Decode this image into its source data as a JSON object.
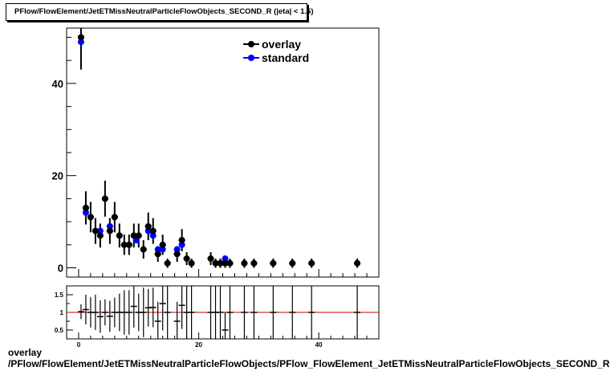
{
  "title": "PFlow/FlowElement/JetETMissNeutralParticleFlowObjects_SECOND_R (|eta| < 1.5)",
  "caption_line1": "overlay",
  "caption_line2": "/PFlow/FlowElement/JetETMissNeutralParticleFlowObjects/PFlow_FlowElement_JetETMissNeutralParticleFlowObjects_SECOND_R",
  "colors": {
    "overlay": "#000000",
    "standard": "#0000ff",
    "ratio_line": "#cc0000"
  },
  "chart_data": [
    {
      "type": "scatter",
      "panel": "main",
      "xlim": [
        -2,
        50
      ],
      "ylim": [
        -2,
        52
      ],
      "yticks": [
        0,
        20,
        40
      ],
      "xticks": [
        0,
        20,
        40
      ],
      "legend": {
        "placement": "top-right",
        "entries": [
          "overlay",
          "standard"
        ]
      },
      "series": [
        {
          "name": "overlay",
          "points": [
            {
              "x": 0.4,
              "y": 50,
              "err": 7
            },
            {
              "x": 1.2,
              "y": 13,
              "err": 3.6
            },
            {
              "x": 2.0,
              "y": 11,
              "err": 3.3
            },
            {
              "x": 2.8,
              "y": 8,
              "err": 2.8
            },
            {
              "x": 3.6,
              "y": 7,
              "err": 2.6
            },
            {
              "x": 4.4,
              "y": 15,
              "err": 3.9
            },
            {
              "x": 5.2,
              "y": 8,
              "err": 2.8
            },
            {
              "x": 6.0,
              "y": 11,
              "err": 3.3
            },
            {
              "x": 6.8,
              "y": 7,
              "err": 2.6
            },
            {
              "x": 7.6,
              "y": 5,
              "err": 2.2
            },
            {
              "x": 8.4,
              "y": 5,
              "err": 2.2
            },
            {
              "x": 9.2,
              "y": 7,
              "err": 2.6
            },
            {
              "x": 10.0,
              "y": 7,
              "err": 2.6
            },
            {
              "x": 10.8,
              "y": 4,
              "err": 2
            },
            {
              "x": 11.6,
              "y": 9,
              "err": 3
            },
            {
              "x": 12.4,
              "y": 8,
              "err": 2.8
            },
            {
              "x": 13.2,
              "y": 3,
              "err": 1.7
            },
            {
              "x": 14.0,
              "y": 5,
              "err": 2.2
            },
            {
              "x": 14.8,
              "y": 1,
              "err": 1
            },
            {
              "x": 16.4,
              "y": 3,
              "err": 1.7
            },
            {
              "x": 17.2,
              "y": 6,
              "err": 2.4
            },
            {
              "x": 18.0,
              "y": 2,
              "err": 1.4
            },
            {
              "x": 18.8,
              "y": 1,
              "err": 1
            },
            {
              "x": 22.0,
              "y": 2,
              "err": 1.4
            },
            {
              "x": 22.8,
              "y": 1,
              "err": 1
            },
            {
              "x": 23.6,
              "y": 1,
              "err": 1
            },
            {
              "x": 24.4,
              "y": 1,
              "err": 1
            },
            {
              "x": 25.2,
              "y": 1,
              "err": 1
            },
            {
              "x": 27.6,
              "y": 1,
              "err": 1
            },
            {
              "x": 29.2,
              "y": 1,
              "err": 1
            },
            {
              "x": 32.4,
              "y": 1,
              "err": 1
            },
            {
              "x": 35.6,
              "y": 1,
              "err": 1
            },
            {
              "x": 38.8,
              "y": 1,
              "err": 1
            },
            {
              "x": 46.4,
              "y": 1,
              "err": 1
            }
          ]
        },
        {
          "name": "standard",
          "points": [
            {
              "x": 0.4,
              "y": 49
            },
            {
              "x": 1.2,
              "y": 12
            },
            {
              "x": 3.6,
              "y": 8
            },
            {
              "x": 5.2,
              "y": 9
            },
            {
              "x": 9.6,
              "y": 6
            },
            {
              "x": 11.6,
              "y": 8
            },
            {
              "x": 12.4,
              "y": 7
            },
            {
              "x": 13.2,
              "y": 4
            },
            {
              "x": 14.0,
              "y": 4
            },
            {
              "x": 16.4,
              "y": 4
            },
            {
              "x": 17.2,
              "y": 5
            },
            {
              "x": 24.4,
              "y": 2
            }
          ]
        }
      ]
    },
    {
      "type": "scatter",
      "panel": "ratio",
      "xlim": [
        -2,
        50
      ],
      "ylim": [
        0.25,
        1.75
      ],
      "yticks": [
        0.5,
        1,
        1.5
      ],
      "xticks": [
        0,
        20,
        40
      ],
      "reference_line": 1,
      "points": [
        {
          "x": 0.4,
          "y": 1.02,
          "err": 0.21
        },
        {
          "x": 1.2,
          "y": 1.08,
          "err": 0.42
        },
        {
          "x": 2.0,
          "y": 1.0,
          "err": 0.43
        },
        {
          "x": 2.8,
          "y": 1.0,
          "err": 0.5
        },
        {
          "x": 3.6,
          "y": 0.88,
          "err": 0.46
        },
        {
          "x": 4.4,
          "y": 1.0,
          "err": 0.37
        },
        {
          "x": 5.2,
          "y": 0.89,
          "err": 0.44
        },
        {
          "x": 6.0,
          "y": 1.0,
          "err": 0.42
        },
        {
          "x": 6.8,
          "y": 1.0,
          "err": 0.53
        },
        {
          "x": 7.6,
          "y": 1.0,
          "err": 0.63
        },
        {
          "x": 8.4,
          "y": 1.0,
          "err": 0.63
        },
        {
          "x": 9.2,
          "y": 1.17,
          "err": 0.6
        },
        {
          "x": 10.0,
          "y": 1.0,
          "err": 0.53
        },
        {
          "x": 10.8,
          "y": 1.0,
          "err": 0.7
        },
        {
          "x": 11.6,
          "y": 1.13,
          "err": 0.53
        },
        {
          "x": 12.4,
          "y": 1.14,
          "err": 0.56
        },
        {
          "x": 13.2,
          "y": 0.75,
          "err": 0.55
        },
        {
          "x": 14.0,
          "y": 1.25,
          "err": 0.76
        },
        {
          "x": 14.8,
          "y": 1.0,
          "err": 1.0
        },
        {
          "x": 16.4,
          "y": 0.75,
          "err": 0.55
        },
        {
          "x": 17.2,
          "y": 1.2,
          "err": 0.67
        },
        {
          "x": 18.0,
          "y": 1.0,
          "err": 1.0
        },
        {
          "x": 18.8,
          "y": 1.0,
          "err": 1.0
        },
        {
          "x": 22.0,
          "y": 1.0,
          "err": 1.0
        },
        {
          "x": 22.8,
          "y": 1.0,
          "err": 1.0
        },
        {
          "x": 23.6,
          "y": 1.0,
          "err": 1.0
        },
        {
          "x": 24.4,
          "y": 0.5,
          "err": 0.5
        },
        {
          "x": 25.2,
          "y": 1.0,
          "err": 1.0
        },
        {
          "x": 27.6,
          "y": 1.0,
          "err": 1.0
        },
        {
          "x": 29.2,
          "y": 1.0,
          "err": 1.0
        },
        {
          "x": 32.4,
          "y": 1.0,
          "err": 1.0
        },
        {
          "x": 35.6,
          "y": 1.0,
          "err": 1.0
        },
        {
          "x": 38.8,
          "y": 1.0,
          "err": 1.0
        },
        {
          "x": 46.4,
          "y": 1.0,
          "err": 1.0
        }
      ]
    }
  ]
}
